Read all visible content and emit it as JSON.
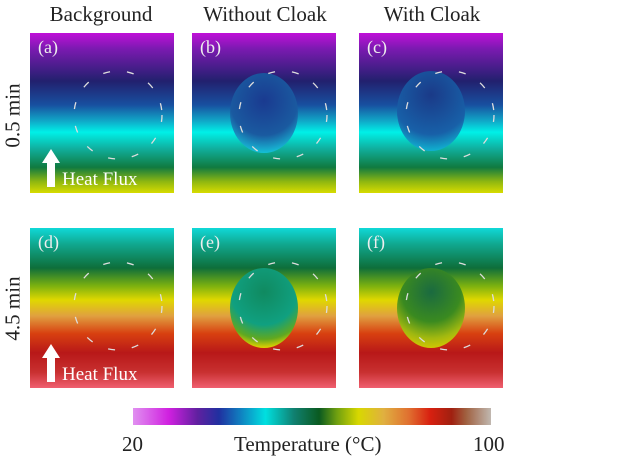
{
  "columns": [
    "Background",
    "Without Cloak",
    "With Cloak"
  ],
  "rows": [
    "0.5 min",
    "4.5 min"
  ],
  "panels": [
    "(a)",
    "(b)",
    "(c)",
    "(d)",
    "(e)",
    "(f)"
  ],
  "heat_flux_label": "Heat Flux",
  "colorbar": {
    "min": "20",
    "max": "100",
    "label": "Temperature (°C)"
  }
}
